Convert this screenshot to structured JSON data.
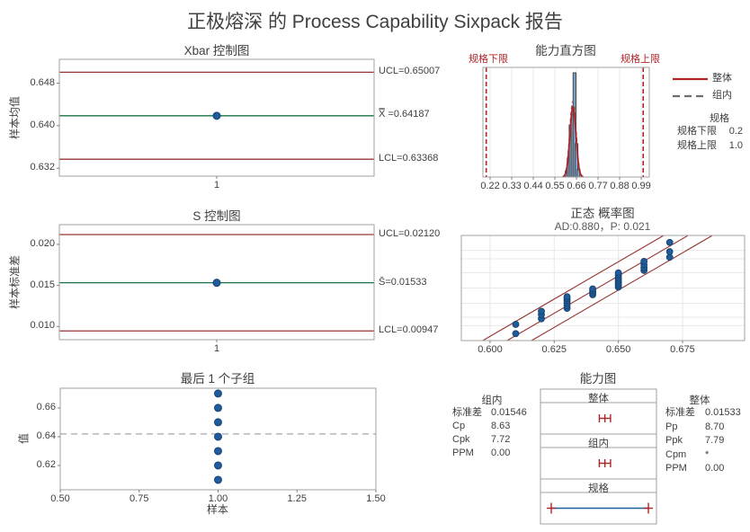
{
  "title": "正极熔深 的 Process Capability Sixpack 报告",
  "colors": {
    "control_line_red": "#943634",
    "center_line_green": "#177245",
    "point_blue": "#1f5c9e",
    "point_edge": "#17456f",
    "spec_red": "#b02428",
    "bar_fill": "#7aa1c7",
    "bar_stroke": "#4a4a4a",
    "within_gray": "#6e6e6e",
    "border_gray": "#a0a0a0",
    "grid_gray": "#e8e8e8",
    "dash_mean_gray": "#a6a6a6",
    "tickmark_gray": "#7f7f7f"
  },
  "chart_data": [
    {
      "id": "xbar",
      "type": "line",
      "title": "Xbar 控制图",
      "ylabel": "样本均值",
      "x": [
        1
      ],
      "values": [
        0.64187
      ],
      "ucl": 0.65007,
      "center": 0.64187,
      "lcl": 0.63368,
      "ucl_label": "UCL=0.65007",
      "center_label": "X̿ =0.64187",
      "lcl_label": "LCL=0.63368",
      "yticks": [
        0.648,
        0.64,
        0.632
      ],
      "ytick_labels": [
        "0.648",
        "0.640",
        "0.632"
      ],
      "xticks": [
        "1"
      ],
      "ylim": [
        0.6305,
        0.6525
      ]
    },
    {
      "id": "hist",
      "type": "bar",
      "title": "能力直方图",
      "lsl": 0.2,
      "usl": 1.0,
      "lsl_label": "规格下限",
      "usl_label": "规格上限",
      "bin_centers": [
        0.61,
        0.62,
        0.63,
        0.64,
        0.65,
        0.66,
        0.67
      ],
      "bar_heights_pct": [
        6,
        18,
        50,
        60,
        100,
        32,
        7
      ],
      "xticks": [
        0.22,
        0.33,
        0.44,
        0.55,
        0.66,
        0.77,
        0.88,
        0.99
      ],
      "xtick_labels": [
        "0.22",
        "0.33",
        "0.44",
        "0.55",
        "0.66",
        "0.77",
        "0.88",
        "0.99"
      ],
      "xlim": [
        0.183,
        1.031
      ],
      "overall_mean": 0.6419,
      "overall_sd": 0.0153,
      "within_sd": 0.0155,
      "legend": [
        {
          "label": "整体",
          "style": "solid"
        },
        {
          "label": "组内",
          "style": "dashed"
        }
      ],
      "spec_table": {
        "header": "规格",
        "rows": [
          [
            "规格下限",
            "0.2"
          ],
          [
            "规格上限",
            "1.0"
          ]
        ]
      }
    },
    {
      "id": "schart",
      "type": "line",
      "title": "S 控制图",
      "ylabel": "样本标准差",
      "x": [
        1
      ],
      "values": [
        0.01533
      ],
      "ucl": 0.0212,
      "center": 0.01533,
      "lcl": 0.00947,
      "ucl_label": "UCL=0.02120",
      "center_label": "S̄=0.01533",
      "lcl_label": "LCL=0.00947",
      "yticks": [
        0.02,
        0.015,
        0.01
      ],
      "ytick_labels": [
        "0.020",
        "0.015",
        "0.010"
      ],
      "xticks": [
        "1"
      ],
      "ylim": [
        0.0084,
        0.0224
      ]
    },
    {
      "id": "prob",
      "type": "scatter",
      "title": "正态 概率图",
      "subtitle": "AD:0.880，P: 0.021",
      "xtick_labels": [
        "0.600",
        "0.625",
        "0.650",
        "0.675"
      ],
      "xtick_values": [
        0.6,
        0.625,
        0.65,
        0.675
      ],
      "xlim": [
        0.5888,
        0.6992
      ],
      "zlim": [
        -2.3,
        2.3
      ],
      "fit_mean": 0.6419,
      "fit_sd": 0.01533,
      "band_offset": 0.0095,
      "grid_z": [
        -2.33,
        -1.645,
        -1.28,
        -0.674,
        0,
        0.674,
        1.28,
        1.645,
        2.33
      ],
      "points": [
        [
          0.61,
          -1.995
        ],
        [
          0.61,
          -1.59
        ],
        [
          0.62,
          -1.348
        ],
        [
          0.62,
          -1.166
        ],
        [
          0.62,
          -1.017
        ],
        [
          0.63,
          -0.887
        ],
        [
          0.63,
          -0.77
        ],
        [
          0.63,
          -0.662
        ],
        [
          0.63,
          -0.561
        ],
        [
          0.63,
          -0.465
        ],
        [
          0.63,
          -0.38
        ],
        [
          0.64,
          -0.293
        ],
        [
          0.64,
          -0.208
        ],
        [
          0.64,
          -0.124
        ],
        [
          0.64,
          -0.041
        ],
        [
          0.65,
          0.041
        ],
        [
          0.65,
          0.124
        ],
        [
          0.65,
          0.208
        ],
        [
          0.65,
          0.293
        ],
        [
          0.65,
          0.38
        ],
        [
          0.65,
          0.465
        ],
        [
          0.65,
          0.561
        ],
        [
          0.65,
          0.664
        ],
        [
          0.66,
          0.77
        ],
        [
          0.66,
          0.887
        ],
        [
          0.66,
          1.017
        ],
        [
          0.66,
          1.166
        ],
        [
          0.67,
          1.348
        ],
        [
          0.67,
          1.59
        ],
        [
          0.67,
          1.995
        ]
      ]
    },
    {
      "id": "lastsub",
      "type": "scatter",
      "title": "最后 1 个子组",
      "xlabel": "样本",
      "ylabel": "值",
      "x": [
        1.0,
        1.0,
        1.0,
        1.0,
        1.0,
        1.0,
        1.0
      ],
      "values": [
        0.61,
        0.62,
        0.63,
        0.64,
        0.65,
        0.66,
        0.67
      ],
      "mean": 0.6419,
      "xtick_labels": [
        "0.50",
        "0.75",
        "1.00",
        "1.25",
        "1.50"
      ],
      "xtick_values": [
        0.5,
        0.75,
        1.0,
        1.25,
        1.5
      ],
      "ytick_labels": [
        "0.66",
        "0.64",
        "0.62"
      ],
      "ytick_values": [
        0.66,
        0.64,
        0.62
      ],
      "xlim": [
        0.5,
        1.5
      ],
      "ylim": [
        0.6031,
        0.6737
      ]
    },
    {
      "id": "cap",
      "type": "capability",
      "title": "能力图",
      "sections": [
        "整体",
        "组内",
        "规格"
      ],
      "lsl": 0.2,
      "usl": 1.0,
      "mean": 0.6419,
      "overall_sd": 0.01533,
      "within_sd": 0.01546,
      "within_stats": {
        "header": "组内",
        "rows": [
          [
            "标准差",
            "0.01546"
          ],
          [
            "Cp",
            "8.63"
          ],
          [
            "Cpk",
            "7.72"
          ],
          [
            "PPM",
            "0.00"
          ]
        ]
      },
      "overall_stats": {
        "header": "整体",
        "rows": [
          [
            "标准差",
            "0.01533"
          ],
          [
            "Pp",
            "8.70"
          ],
          [
            "Ppk",
            "7.79"
          ],
          [
            "Cpm",
            "*"
          ],
          [
            "PPM",
            "0.00"
          ]
        ]
      }
    }
  ]
}
